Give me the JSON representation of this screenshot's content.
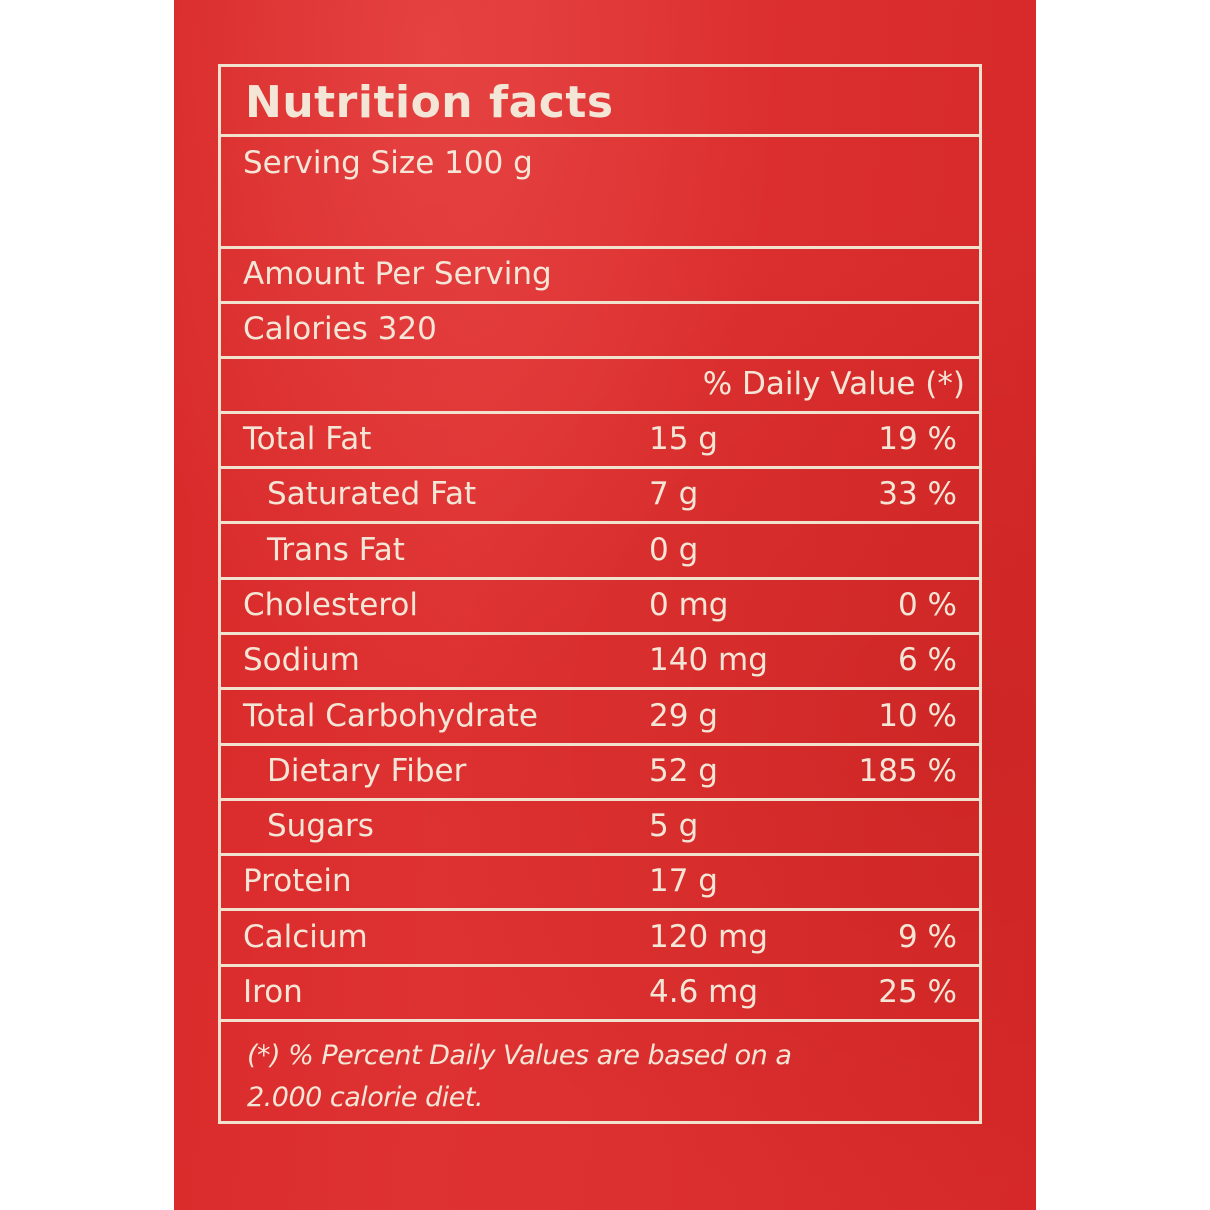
{
  "label": {
    "title": "Nutrition facts",
    "serving_size": "Serving Size 100 g",
    "amount_per_serving": "Amount Per Serving",
    "calories": "Calories 320",
    "dv_header": "% Daily Value (*)",
    "nutrients": [
      {
        "name": "Total Fat",
        "amount": "15 g",
        "dv": "19 %",
        "indent": false
      },
      {
        "name": "Saturated Fat",
        "amount": "7 g",
        "dv": "33 %",
        "indent": true
      },
      {
        "name": "Trans Fat",
        "amount": "0 g",
        "dv": "",
        "indent": true
      },
      {
        "name": "Cholesterol",
        "amount": "0 mg",
        "dv": "0 %",
        "indent": false
      },
      {
        "name": "Sodium",
        "amount": "140 mg",
        "dv": "6 %",
        "indent": false
      },
      {
        "name": "Total Carbohydrate",
        "amount": "29 g",
        "dv": "10 %",
        "indent": false
      },
      {
        "name": "Dietary Fiber",
        "amount": "52 g",
        "dv": "185 %",
        "indent": true
      },
      {
        "name": "Sugars",
        "amount": "5 g",
        "dv": "",
        "indent": true
      },
      {
        "name": "Protein",
        "amount": "17 g",
        "dv": "",
        "indent": false
      },
      {
        "name": "Calcium",
        "amount": "120 mg",
        "dv": "9 %",
        "indent": false
      },
      {
        "name": "Iron",
        "amount": "4.6 mg",
        "dv": "25 %",
        "indent": false
      }
    ],
    "footnote_line1": "(*) % Percent Daily Values are based on a",
    "footnote_line2": "2.000 calorie diet."
  },
  "colors": {
    "packet_red": "#dc2f2f",
    "print_cream": "#f4e6d6"
  }
}
